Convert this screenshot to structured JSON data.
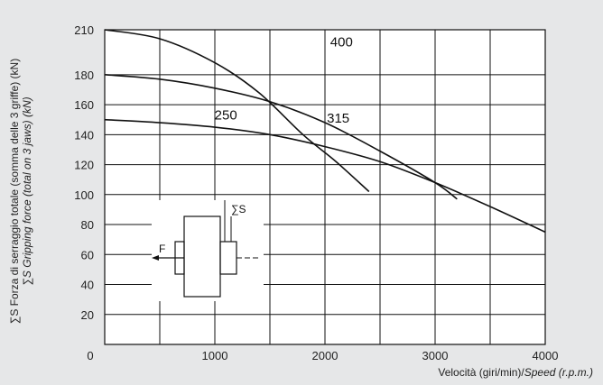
{
  "chart_data": {
    "type": "line",
    "xlim": [
      0,
      4000
    ],
    "ylim": [
      0,
      210
    ],
    "x_ticks": [
      1000,
      2000,
      3000,
      4000
    ],
    "y_ticks": [
      20,
      40,
      60,
      80,
      100,
      120,
      140,
      160,
      180,
      210
    ],
    "origin_label": "0",
    "grid": true,
    "xlabel_plain": "Velocità (giri/min)/",
    "xlabel_italic": "Speed (r.p.m.)",
    "ylabel_line1": "∑S Forza di serraggio totale (somma delle 3 griffe) (kN)",
    "ylabel_line2": "∑S Gripping force (total on 3 jaws) (kN)",
    "series": [
      {
        "name": "400",
        "x": [
          0,
          500,
          1000,
          1400,
          1800,
          2100,
          2400
        ],
        "y": [
          210,
          204,
          188,
          168,
          140,
          122,
          102
        ]
      },
      {
        "name": "315",
        "x": [
          0,
          500,
          1000,
          1500,
          2000,
          2500,
          3000,
          3200
        ],
        "y": [
          180,
          177,
          171,
          162,
          148,
          129,
          108,
          97
        ]
      },
      {
        "name": "250",
        "x": [
          0,
          500,
          1000,
          1500,
          2000,
          2500,
          3000,
          3500,
          4000
        ],
        "y": [
          150,
          148,
          145,
          140,
          132,
          122,
          108,
          92,
          75
        ]
      }
    ],
    "inset": {
      "force_label": "F",
      "sum_label": "∑S"
    }
  }
}
